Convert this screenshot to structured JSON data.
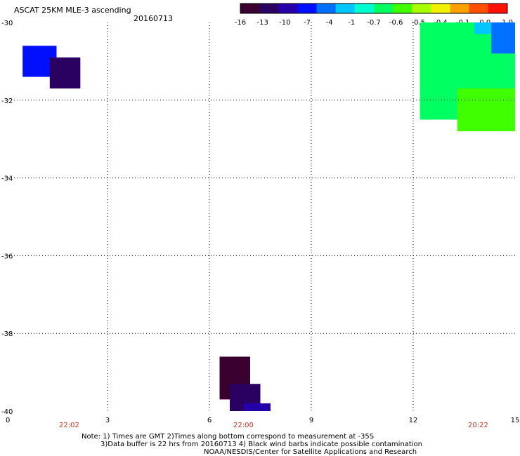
{
  "header": {
    "title": "ASCAT 25KM MLE-3 ascending",
    "date": "20160713"
  },
  "colorbar": {
    "colors": [
      "#3a0030",
      "#2a0060",
      "#2500a8",
      "#0010ff",
      "#0070ff",
      "#00c8ff",
      "#00ffd0",
      "#00ff60",
      "#40ff00",
      "#a8ff00",
      "#f0f000",
      "#ffa000",
      "#ff5000",
      "#ff1000"
    ],
    "tick_labels": [
      "-16",
      "-13",
      "-10",
      "-7",
      "-4",
      "-1",
      "-0.7",
      "-0.6",
      "-0.5",
      "-0.4",
      "-0.1",
      "0.0",
      "1.0"
    ]
  },
  "axes": {
    "x_ticks": [
      "0",
      "3",
      "6",
      "9",
      "12",
      "15"
    ],
    "y_ticks": [
      "-30",
      "-32",
      "-34",
      "-36",
      "-38",
      "-40"
    ],
    "x_range": [
      0,
      15
    ],
    "y_range": [
      -30,
      -40
    ]
  },
  "pass_times": [
    "22:02",
    "22:00",
    "20:22"
  ],
  "notes": {
    "line1": "Note: 1) Times are GMT 2)Times along bottom correspond to measurement at -35S",
    "line2": "3)Data buffer is 22 hrs from 20160713 4) Black wind barbs indicate possible contamination",
    "line3": "NOAA/NESDIS/Center for Satellite Applications and Research"
  },
  "chart_data": {
    "type": "heatmap",
    "title": "ASCAT 25KM MLE-3 ascending",
    "x_range": [
      0,
      15
    ],
    "y_range": [
      -30,
      -40
    ],
    "grid": true,
    "cells": [
      {
        "lon0": 0.5,
        "lon1": 1.5,
        "lat0": -30.6,
        "lat1": -31.4,
        "value": -7
      },
      {
        "lon0": 1.3,
        "lon1": 2.2,
        "lat0": -30.9,
        "lat1": -31.7,
        "value": -13
      },
      {
        "lon0": 6.3,
        "lon1": 7.2,
        "lat0": -38.6,
        "lat1": -39.7,
        "value": -16
      },
      {
        "lon0": 6.6,
        "lon1": 7.5,
        "lat0": -39.3,
        "lat1": -40.0,
        "value": -13
      },
      {
        "lon0": 7.0,
        "lon1": 7.8,
        "lat0": -39.8,
        "lat1": -40.0,
        "value": -10
      },
      {
        "lon0": 12.2,
        "lon1": 15.0,
        "lat0": -30.0,
        "lat1": -32.5,
        "value": -0.6
      },
      {
        "lon0": 13.3,
        "lon1": 15.0,
        "lat0": -31.7,
        "lat1": -32.8,
        "value": -0.5
      },
      {
        "lon0": 13.8,
        "lon1": 15.0,
        "lat0": -30.0,
        "lat1": -30.3,
        "value": -1
      },
      {
        "lon0": 14.3,
        "lon1": 15.0,
        "lat0": -30.0,
        "lat1": -30.8,
        "value": -4
      }
    ]
  }
}
